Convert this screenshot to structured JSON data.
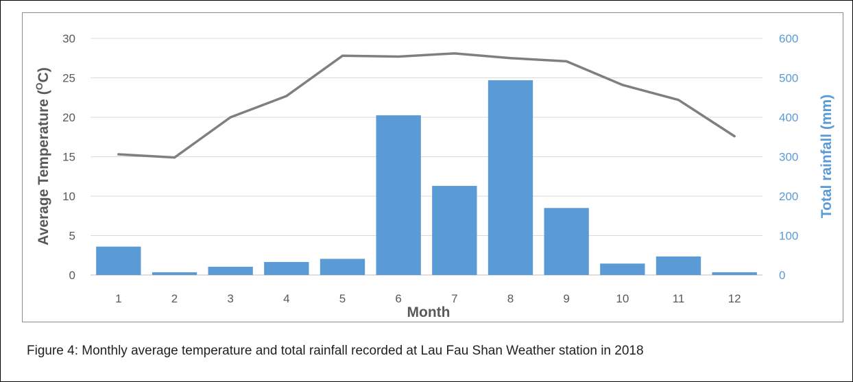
{
  "caption": "Figure 4: Monthly average temperature and total rainfall recorded at Lau Fau Shan Weather station in 2018",
  "chart_data": {
    "type": "bar+line",
    "title": "",
    "xlabel": "Month",
    "ylabel_left": "Average Temperature (OC)",
    "ylabel_left_parts": {
      "before": "Average Temperature (",
      "sup": "O",
      "after": "C)"
    },
    "ylabel_right": "Total rainfall (mm)",
    "categories": [
      "1",
      "2",
      "3",
      "4",
      "5",
      "6",
      "7",
      "8",
      "9",
      "10",
      "11",
      "12"
    ],
    "y_left_ticks": [
      "0",
      "5",
      "10",
      "15",
      "20",
      "25",
      "30"
    ],
    "y_right_ticks": [
      "0",
      "100",
      "200",
      "300",
      "400",
      "500",
      "600"
    ],
    "ylim_left": [
      0,
      30
    ],
    "ylim_right": [
      0,
      600
    ],
    "grid": true,
    "legend": "none",
    "series": [
      {
        "name": "Total rainfall (mm)",
        "type": "bar",
        "axis": "right",
        "color": "#5b9bd5",
        "values": [
          72,
          7,
          21,
          33,
          41,
          405,
          226,
          494,
          170,
          29,
          47,
          7
        ]
      },
      {
        "name": "Average Temperature (OC)",
        "type": "line",
        "axis": "left",
        "color": "#7f7f7f",
        "values": [
          15.3,
          14.9,
          20.0,
          22.7,
          27.8,
          27.7,
          28.1,
          27.5,
          27.1,
          24.1,
          22.2,
          17.6
        ]
      }
    ]
  }
}
